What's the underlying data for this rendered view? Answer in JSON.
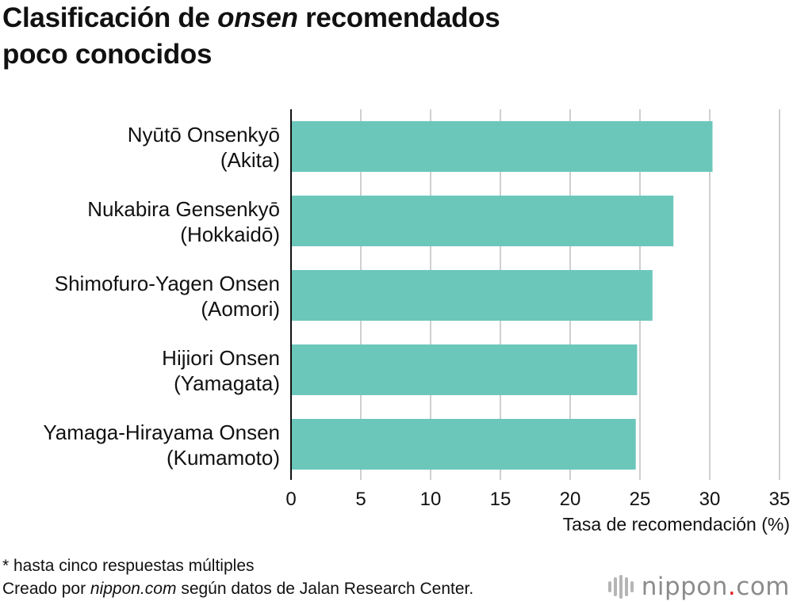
{
  "title": {
    "before": "Clasificación de ",
    "emph": "onsen",
    "after": " recomendados poco conocidos"
  },
  "chart_data": {
    "type": "bar",
    "orientation": "horizontal",
    "categories": [
      [
        "Nyūtō Onsenkyō",
        "(Akita)"
      ],
      [
        "Nukabira Gensenkyō",
        "(Hokkaidō)"
      ],
      [
        "Shimofuro-Yagen Onsen",
        "(Aomori)"
      ],
      [
        "Hijiori Onsen",
        "(Yamagata)"
      ],
      [
        "Yamaga-Hirayama Onsen",
        "(Kumamoto)"
      ]
    ],
    "values": [
      30.2,
      27.4,
      25.9,
      24.8,
      24.7
    ],
    "xlabel": "Tasa de recomendación (%)",
    "xlim": [
      0,
      35
    ],
    "xticks": [
      0,
      5,
      10,
      15,
      20,
      25,
      30,
      35
    ],
    "grid": true,
    "bar_color": "#6cc7bb",
    "grid_color": "#cfcfcf"
  },
  "footer": {
    "note": "* hasta cinco respuestas múltiples",
    "credit_before": "Creado por ",
    "credit_emph": "nippon.com",
    "credit_after": " según datos de Jalan Research Center."
  },
  "logo": {
    "name": "nippon",
    "dot": ".",
    "tld": "com",
    "dot_color": "#e02020"
  }
}
